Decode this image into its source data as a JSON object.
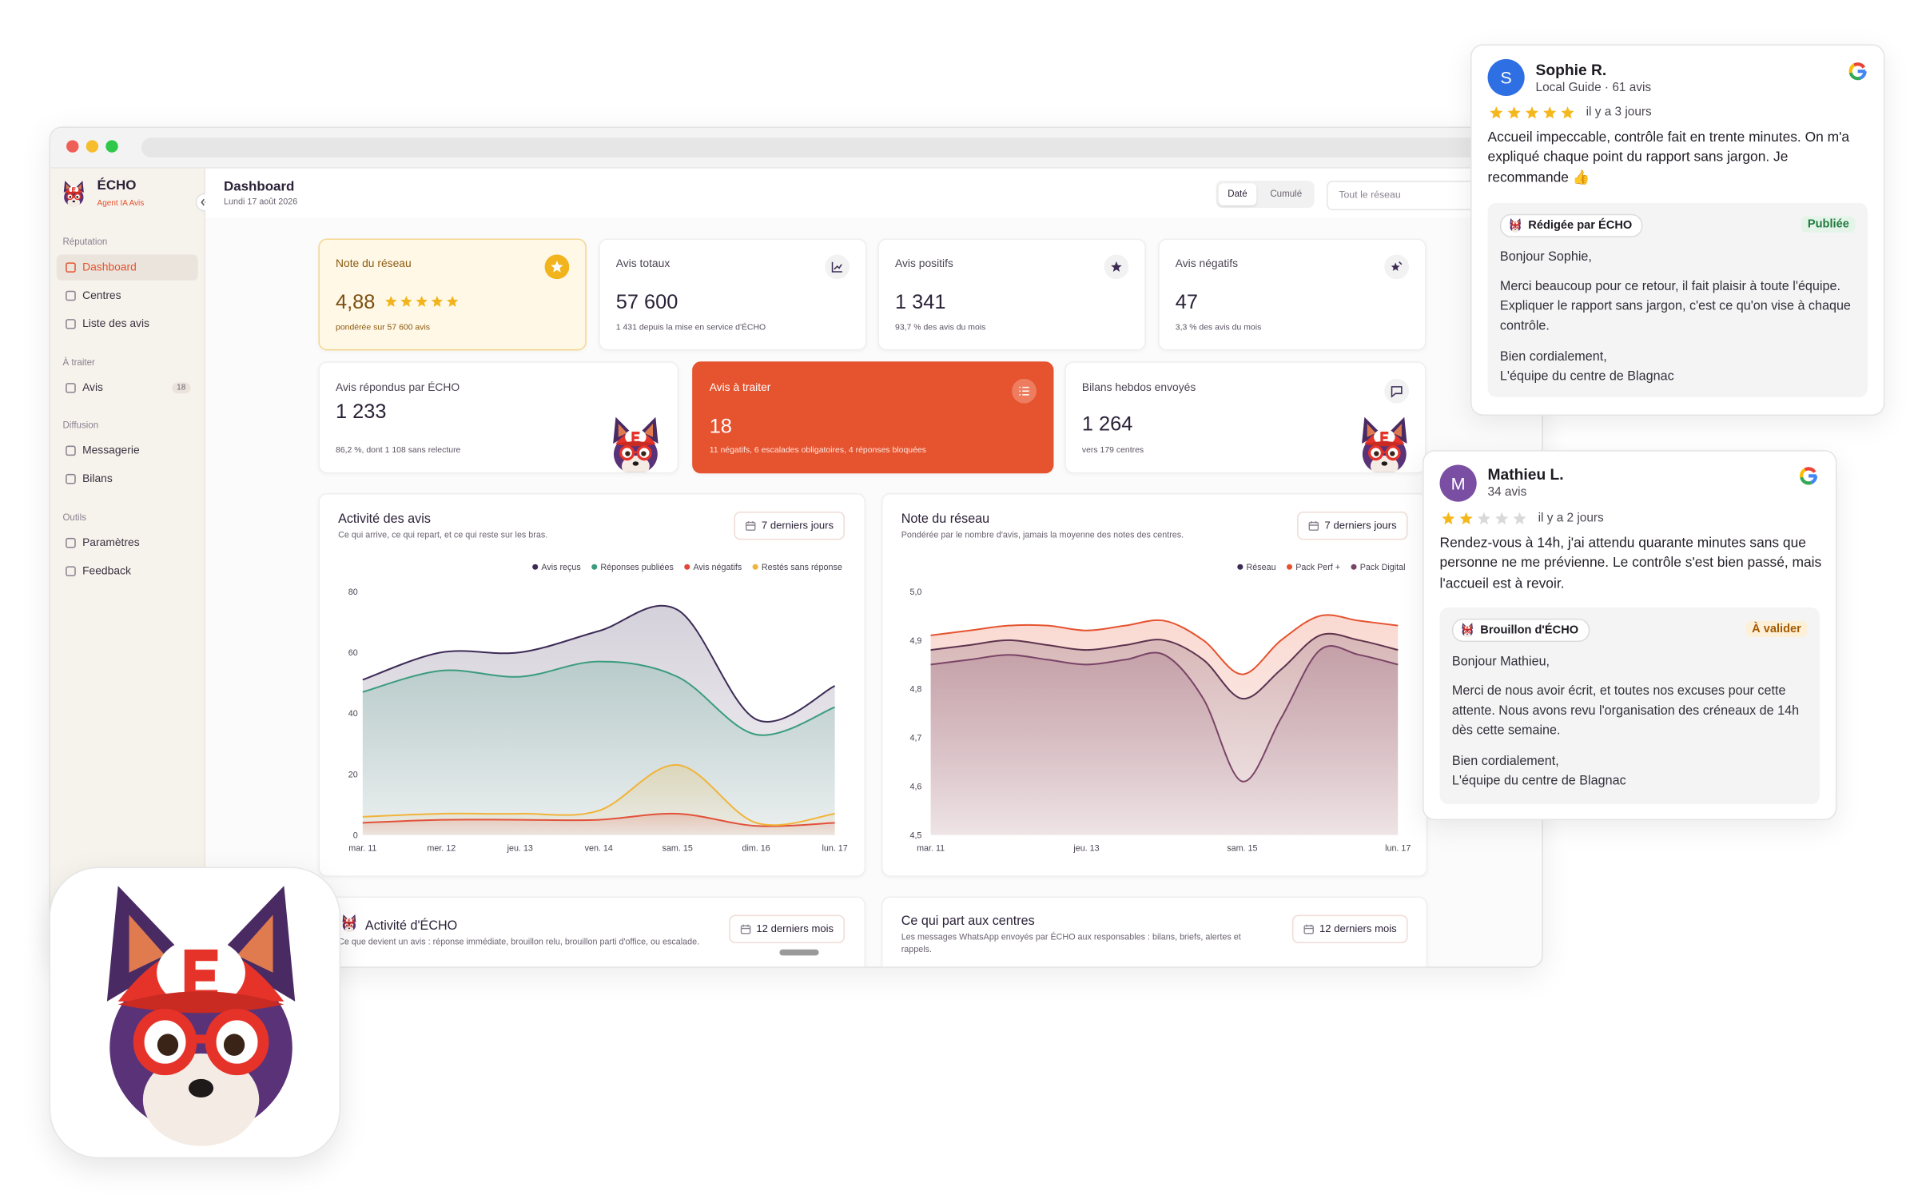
{
  "sidebar": {
    "brand": "ÉCHO",
    "tagline": "Agent IA Avis",
    "sections": [
      {
        "title": "Réputation",
        "items": [
          {
            "label": "Dashboard"
          },
          {
            "label": "Centres"
          },
          {
            "label": "Liste des avis"
          }
        ]
      },
      {
        "title": "À traiter",
        "items": [
          {
            "label": "Avis",
            "badge": 18
          }
        ]
      },
      {
        "title": "Diffusion",
        "items": [
          {
            "label": "Messagerie"
          },
          {
            "label": "Bilans"
          }
        ]
      },
      {
        "title": "Outils",
        "items": [
          {
            "label": "Paramètres"
          },
          {
            "label": "Feedback"
          }
        ]
      }
    ]
  },
  "header": {
    "title": "Dashboard",
    "date": "Lundi 17 août 2026",
    "toggle": [
      "Daté",
      "Cumulé"
    ],
    "search": "Tout le réseau"
  },
  "kpis": [
    {
      "label": "Note du réseau",
      "value": "4,88",
      "note": "pondérée sur 57 600 avis"
    },
    {
      "label": "Avis totaux",
      "value": "57 600",
      "note": "1 431 depuis la mise en service d'ÉCHO"
    },
    {
      "label": "Avis positifs",
      "value": "1 341",
      "note": "93,7 % des avis du mois"
    },
    {
      "label": "Avis négatifs",
      "value": "47",
      "note": "3,3 % des avis du mois"
    },
    {
      "label": "Avis répondus par ÉCHO",
      "value": "1 233",
      "note": "86,2 %, dont 1 108 sans relecture"
    },
    {
      "label": "Avis à traiter",
      "value": "18",
      "note": "11 négatifs, 6 escalades obligatoires, 4 réponses bloquées"
    },
    {
      "label": "Bilans hebdos envoyés",
      "value": "1 264",
      "note": "vers 179 centres"
    }
  ],
  "chart_data": [
    {
      "type": "area",
      "title": "Activité des avis",
      "subtitle": "Ce qui arrive, ce qui repart, et ce qui reste sur les bras.",
      "period": "7 derniers jours",
      "categories": [
        "mar. 11",
        "mer. 12",
        "jeu. 13",
        "ven. 14",
        "sam. 15",
        "dim. 16",
        "lun. 17"
      ],
      "ylim": [
        0,
        80
      ],
      "yticks": [
        0,
        20,
        40,
        60,
        80
      ],
      "grid": false,
      "series": [
        {
          "name": "Avis reçus",
          "color": "#3d2b56",
          "values": [
            51,
            60,
            60,
            67,
            74,
            38,
            49
          ]
        },
        {
          "name": "Réponses publiées",
          "color": "#3a9c7c",
          "values": [
            47,
            54,
            52,
            57,
            52,
            33,
            42
          ]
        },
        {
          "name": "Avis négatifs",
          "color": "#e0483a",
          "values": [
            4,
            5,
            5,
            5,
            7,
            3,
            4
          ]
        },
        {
          "name": "Restés sans réponse",
          "color": "#f0b43a",
          "values": [
            6,
            7,
            7,
            8,
            23,
            4,
            7
          ]
        }
      ]
    },
    {
      "type": "area",
      "title": "Note du réseau",
      "subtitle": "Pondérée par le nombre d'avis, jamais la moyenne des notes des centres.",
      "period": "7 derniers jours",
      "categories": [
        "mar. 11",
        null,
        null,
        null,
        "jeu. 13",
        null,
        null,
        null,
        "sam. 15",
        null,
        null,
        null,
        "lun. 17"
      ],
      "ylim": [
        4.5,
        5.0
      ],
      "yticks": [
        {
          "value": 4.5,
          "label": "4,5"
        },
        {
          "value": 4.6,
          "label": "4,6"
        },
        {
          "value": 4.7,
          "label": "4,7"
        },
        {
          "value": 4.8,
          "label": "4,8"
        },
        {
          "value": 4.9,
          "label": "4,9"
        },
        {
          "value": 5.0,
          "label": "5,0"
        }
      ],
      "grid": false,
      "series": [
        {
          "name": "Réseau",
          "color": "#3d2b56",
          "values": [
            4.88,
            4.89,
            4.9,
            4.89,
            4.88,
            4.89,
            4.9,
            4.86,
            4.78,
            4.84,
            4.91,
            4.9,
            4.88
          ]
        },
        {
          "name": "Pack Perf +",
          "color": "#e5532f",
          "values": [
            4.91,
            4.92,
            4.93,
            4.93,
            4.92,
            4.93,
            4.94,
            4.9,
            4.83,
            4.9,
            4.95,
            4.94,
            4.93
          ]
        },
        {
          "name": "Pack Digital",
          "color": "#7a4466",
          "values": [
            4.85,
            4.86,
            4.87,
            4.86,
            4.85,
            4.86,
            4.87,
            4.78,
            4.61,
            4.74,
            4.88,
            4.87,
            4.85
          ]
        }
      ]
    }
  ],
  "bottom_cards": [
    {
      "title": "Activité d'ÉCHO",
      "subtitle": "Ce que devient un avis : réponse immédiate, brouillon relu, brouillon parti d'office, ou escalade.",
      "period": "12 derniers mois"
    },
    {
      "title": "Ce qui part aux centres",
      "subtitle": "Les messages WhatsApp envoyés par ÉCHO aux responsables : bilans, briefs, alertes et rappels.",
      "period": "12 derniers mois"
    }
  ],
  "reviews": [
    {
      "initial": "S",
      "author": "Sophie R.",
      "meta": "Local Guide · 61 avis",
      "rating": 5,
      "when": "il y a 3 jours",
      "text": "Accueil impeccable, contrôle fait en trente minutes. On m'a expliqué chaque point du rapport sans jargon. Je recommande 👍",
      "reply": {
        "by": "Rédigée par ÉCHO",
        "status": "Publiée",
        "greeting": "Bonjour Sophie,",
        "body": "Merci beaucoup pour ce retour, il fait plaisir à toute l'équipe. Expliquer le rapport sans jargon, c'est ce qu'on vise à chaque contrôle.",
        "closing": "Bien cordialement,",
        "signature": "L'équipe du centre de Blagnac"
      }
    },
    {
      "initial": "M",
      "author": "Mathieu L.",
      "meta": "34 avis",
      "rating": 2,
      "when": "il y a 2 jours",
      "text": "Rendez-vous à 14h, j'ai attendu quarante minutes sans que personne ne me prévienne. Le contrôle s'est bien passé, mais l'accueil est à revoir.",
      "reply": {
        "by": "Brouillon d'ÉCHO",
        "status": "À valider",
        "greeting": "Bonjour Mathieu,",
        "body": "Merci de nous avoir écrit, et toutes nos excuses pour cette attente. Nous avons revu l'organisation des créneaux de 14h dès cette semaine.",
        "closing": "Bien cordialement,",
        "signature": "L'équipe du centre de Blagnac"
      }
    }
  ]
}
